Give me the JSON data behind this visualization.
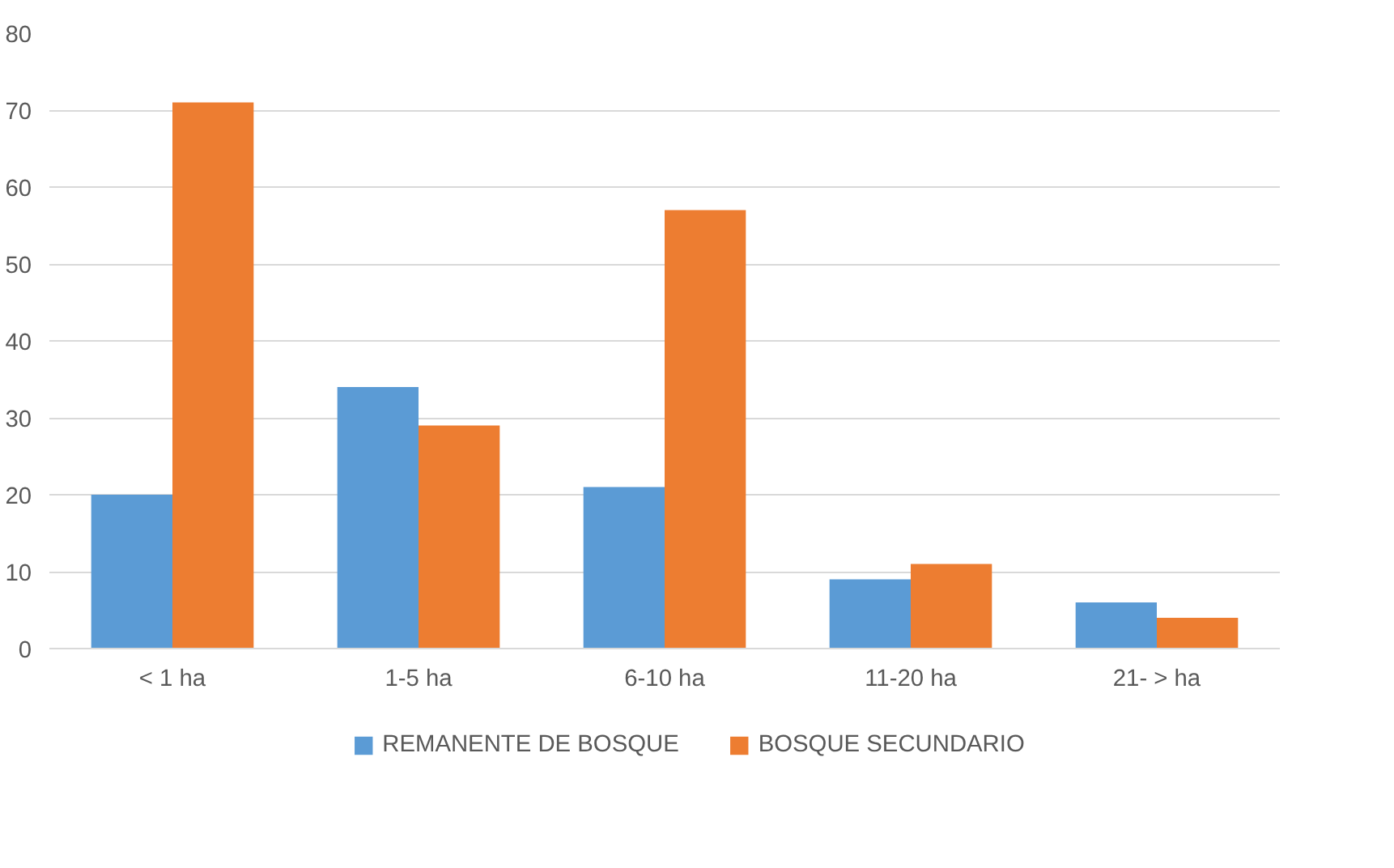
{
  "chart_data": {
    "type": "bar",
    "categories": [
      "< 1 ha",
      "1-5 ha",
      "6-10 ha",
      "11-20 ha",
      "21- > ha"
    ],
    "series": [
      {
        "name": "REMANENTE DE BOSQUE",
        "color": "#5b9bd5",
        "values": [
          20,
          34,
          21,
          9,
          6
        ]
      },
      {
        "name": "BOSQUE SECUNDARIO",
        "color": "#ed7d31",
        "values": [
          71,
          29,
          57,
          11,
          4
        ]
      }
    ],
    "ylim": [
      0,
      80
    ],
    "yticks": [
      0,
      10,
      20,
      30,
      40,
      50,
      60,
      70,
      80
    ],
    "grid": "y",
    "legend": "bottom"
  }
}
